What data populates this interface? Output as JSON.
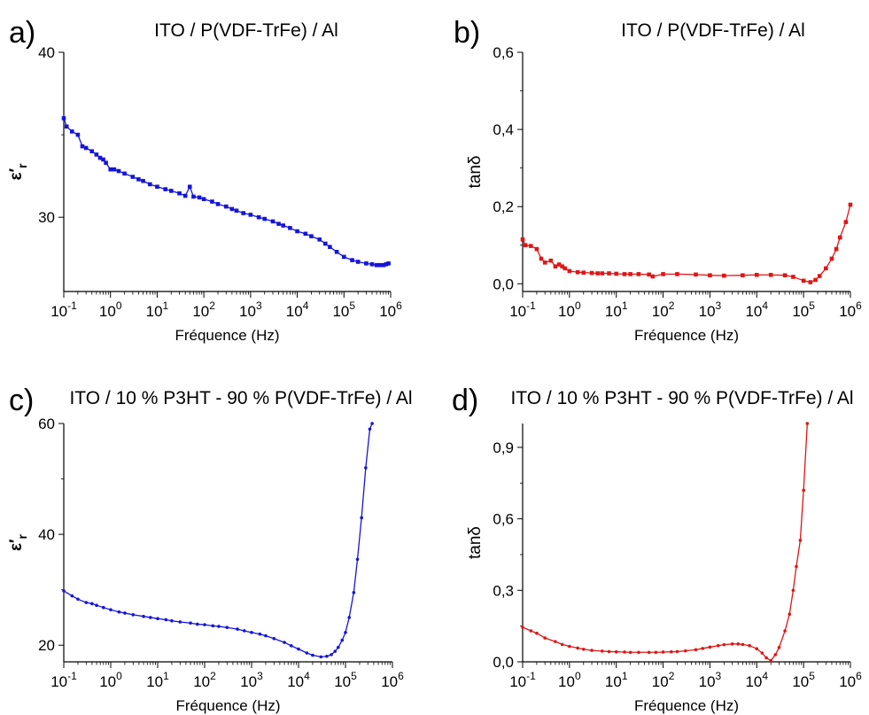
{
  "chart_data": [
    {
      "id": "a",
      "type": "line",
      "panel_label": "a)",
      "title": "ITO / P(VDF-TrFe) / Al",
      "xlabel": "Fréquence (Hz)",
      "ylabel": "ε′r",
      "xscale": "log",
      "xlim": [
        0.1,
        1000000
      ],
      "ylim": [
        25.5,
        40
      ],
      "xticks": [
        "10-1",
        "100",
        "101",
        "102",
        "103",
        "104",
        "105",
        "106"
      ],
      "yticks": [
        30,
        40
      ],
      "color": "#1515d8",
      "marker": "square",
      "series": [
        {
          "x": [
            0.1,
            0.115,
            0.15,
            0.2,
            0.25,
            0.3,
            0.4,
            0.5,
            0.6,
            0.7,
            0.8,
            1.0,
            1.2,
            1.5,
            2,
            3,
            4,
            5,
            7,
            10,
            15,
            20,
            30,
            40,
            50,
            60,
            80,
            100,
            150,
            200,
            300,
            400,
            500,
            700,
            1000,
            1500,
            2000,
            3000,
            4000,
            5000,
            7000,
            10000,
            15000,
            20000,
            30000,
            40000,
            50000,
            70000,
            100000,
            150000,
            200000,
            300000,
            400000,
            500000,
            600000,
            700000,
            800000,
            900000
          ],
          "y": [
            36.0,
            35.5,
            35.2,
            35.0,
            34.3,
            34.2,
            34.0,
            33.8,
            33.6,
            33.5,
            33.3,
            32.9,
            32.9,
            32.8,
            32.65,
            32.45,
            32.3,
            32.2,
            32.0,
            31.85,
            31.7,
            31.6,
            31.45,
            31.3,
            31.85,
            31.25,
            31.2,
            31.1,
            30.95,
            30.8,
            30.65,
            30.5,
            30.4,
            30.25,
            30.15,
            30.0,
            29.9,
            29.75,
            29.6,
            29.5,
            29.35,
            29.15,
            29.0,
            28.85,
            28.65,
            28.4,
            28.2,
            27.9,
            27.6,
            27.4,
            27.3,
            27.2,
            27.15,
            27.1,
            27.1,
            27.1,
            27.15,
            27.2
          ]
        }
      ]
    },
    {
      "id": "b",
      "type": "line",
      "panel_label": "b)",
      "title": "ITO / P(VDF-TrFe) / Al",
      "xlabel": "Fréquence (Hz)",
      "ylabel": "tanδ",
      "xscale": "log",
      "xlim": [
        0.1,
        1000000
      ],
      "ylim": [
        -0.02,
        0.6
      ],
      "xticks": [
        "10-1",
        "100",
        "101",
        "102",
        "103",
        "104",
        "105",
        "106"
      ],
      "yticks": [
        "0,0",
        "0,2",
        "0,4",
        "0,6"
      ],
      "ytick_values": [
        0,
        0.2,
        0.4,
        0.6
      ],
      "color": "#e01515",
      "marker": "square",
      "series": [
        {
          "x": [
            0.1,
            0.115,
            0.15,
            0.2,
            0.25,
            0.3,
            0.4,
            0.5,
            0.6,
            0.7,
            0.8,
            1.0,
            1.5,
            2,
            3,
            4,
            5,
            7,
            10,
            15,
            20,
            30,
            50,
            60,
            100,
            200,
            500,
            1000,
            2000,
            5000,
            10000,
            20000,
            40000,
            60000,
            100000,
            140000,
            180000,
            220000,
            300000,
            400000,
            500000,
            600000,
            800000,
            1000000
          ],
          "y": [
            0.115,
            0.1,
            0.098,
            0.09,
            0.065,
            0.055,
            0.06,
            0.045,
            0.05,
            0.045,
            0.04,
            0.033,
            0.03,
            0.029,
            0.028,
            0.027,
            0.027,
            0.027,
            0.026,
            0.025,
            0.025,
            0.025,
            0.024,
            0.019,
            0.025,
            0.025,
            0.024,
            0.022,
            0.021,
            0.022,
            0.023,
            0.023,
            0.022,
            0.018,
            0.008,
            0.004,
            0.01,
            0.02,
            0.04,
            0.065,
            0.09,
            0.12,
            0.16,
            0.205
          ]
        }
      ]
    },
    {
      "id": "c",
      "type": "line",
      "panel_label": "c)",
      "title": "ITO / 10 % P3HT - 90 % P(VDF-TrFe) / Al",
      "xlabel": "Fréquence (Hz)",
      "ylabel": "ε′r",
      "xscale": "log",
      "xlim": [
        0.1,
        1000000
      ],
      "ylim": [
        17,
        60
      ],
      "xticks": [
        "10-1",
        "100",
        "101",
        "102",
        "103",
        "104",
        "105",
        "106"
      ],
      "yticks": [
        20,
        40,
        60
      ],
      "color": "#1515d8",
      "marker": "circle",
      "series": [
        {
          "x": [
            0.1,
            0.15,
            0.2,
            0.3,
            0.4,
            0.5,
            0.7,
            1,
            1.5,
            2,
            3,
            5,
            7,
            10,
            15,
            20,
            30,
            50,
            70,
            100,
            150,
            200,
            300,
            500,
            700,
            1000,
            1500,
            2000,
            3000,
            5000,
            7000,
            10000,
            15000,
            20000,
            30000,
            40000,
            50000,
            60000,
            70000,
            85000,
            100000,
            120000,
            150000,
            180000,
            220000,
            270000,
            330000,
            370000
          ],
          "y": [
            29.8,
            28.9,
            28.3,
            27.7,
            27.5,
            27.2,
            26.8,
            26.4,
            26.0,
            25.8,
            25.5,
            25.2,
            25.0,
            24.8,
            24.6,
            24.4,
            24.2,
            24.0,
            23.8,
            23.7,
            23.5,
            23.4,
            23.2,
            22.9,
            22.6,
            22.3,
            22.0,
            21.7,
            21.2,
            20.5,
            19.9,
            19.3,
            18.6,
            18.2,
            17.9,
            18.0,
            18.3,
            18.9,
            19.6,
            20.9,
            22.3,
            25.0,
            29.5,
            35.5,
            43.0,
            52.0,
            59.0,
            60.0
          ]
        }
      ]
    },
    {
      "id": "d",
      "type": "line",
      "panel_label": "d)",
      "title": "ITO / 10 % P3HT - 90 % P(VDF-TrFe) / Al",
      "xlabel": "Fréquence (Hz)",
      "ylabel": "tanδ",
      "xscale": "log",
      "xlim": [
        0.1,
        1000000
      ],
      "ylim": [
        0,
        1.0
      ],
      "xticks": [
        "10-1",
        "100",
        "101",
        "102",
        "103",
        "104",
        "105",
        "106"
      ],
      "yticks": [
        "0,0",
        "0,3",
        "0,6",
        "0,9"
      ],
      "ytick_values": [
        0,
        0.3,
        0.6,
        0.9
      ],
      "color": "#e01515",
      "marker": "circle",
      "series": [
        {
          "x": [
            0.1,
            0.15,
            0.2,
            0.3,
            0.5,
            0.7,
            1,
            1.5,
            2,
            3,
            5,
            7,
            10,
            15,
            20,
            30,
            50,
            70,
            100,
            150,
            200,
            300,
            500,
            700,
            1000,
            1500,
            2000,
            3000,
            4000,
            5000,
            7000,
            10000,
            13000,
            16000,
            20000,
            25000,
            30000,
            40000,
            50000,
            60000,
            70000,
            85000,
            100000,
            120000
          ],
          "y": [
            0.145,
            0.13,
            0.12,
            0.1,
            0.085,
            0.073,
            0.065,
            0.058,
            0.053,
            0.048,
            0.045,
            0.043,
            0.042,
            0.041,
            0.04,
            0.04,
            0.04,
            0.04,
            0.041,
            0.042,
            0.043,
            0.046,
            0.051,
            0.056,
            0.062,
            0.068,
            0.072,
            0.075,
            0.075,
            0.073,
            0.068,
            0.055,
            0.037,
            0.017,
            0.005,
            0.03,
            0.06,
            0.13,
            0.2,
            0.3,
            0.4,
            0.51,
            0.72,
            1.0
          ]
        }
      ]
    }
  ]
}
